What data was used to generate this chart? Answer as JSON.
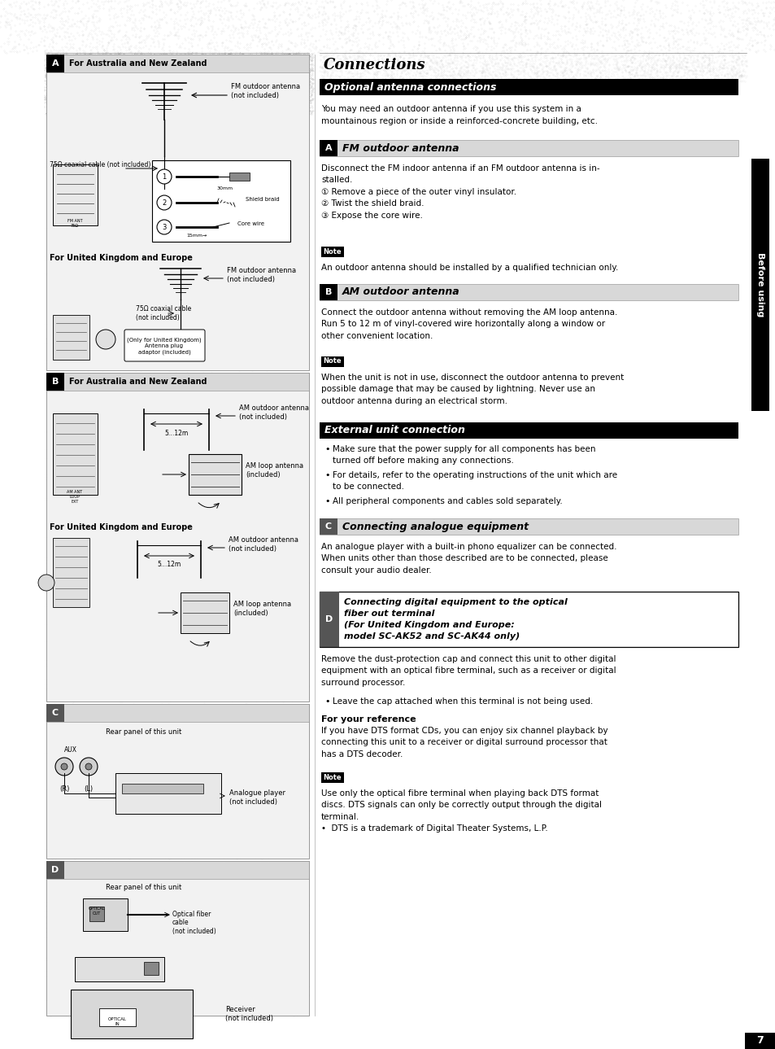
{
  "page_bg": "#ffffff",
  "title": "Connections",
  "section1_title": "Optional antenna connections",
  "body1": "You may need an outdoor antenna if you use this system in a\nmountainous region or inside a reinforced-concrete building, etc.",
  "section_A_label": "A",
  "section_A_title": "FM outdoor antenna",
  "section_A_body": "Disconnect the FM indoor antenna if an FM outdoor antenna is in-\nstalled.\n① Remove a piece of the outer vinyl insulator.\n② Twist the shield braid.\n③ Expose the core wire.",
  "note1_body": "An outdoor antenna should be installed by a qualified technician only.",
  "section_B_label": "B",
  "section_B_title": "AM outdoor antenna",
  "section_B_body": "Connect the outdoor antenna without removing the AM loop antenna.\nRun 5 to 12 m of vinyl-covered wire horizontally along a window or\nother convenient location.",
  "note2_body": "When the unit is not in use, disconnect the outdoor antenna to prevent\npossible damage that may be caused by lightning. Never use an\noutdoor antenna during an electrical storm.",
  "section2_title": "External unit connection",
  "bullet1": "Make sure that the power supply for all components has been\nturned off before making any connections.",
  "bullet2": "For details, refer to the operating instructions of the unit which are\nto be connected.",
  "bullet3": "All peripheral components and cables sold separately.",
  "section_C_label": "C",
  "section_C_title": "Connecting analogue equipment",
  "section_C_body": "An analogue player with a built-in phono equalizer can be connected.\nWhen units other than those described are to be connected, please\nconsult your audio dealer.",
  "section_D_label": "D",
  "section_D_title": "Connecting digital equipment to the optical\nfiber out terminal\n(For United Kingdom and Europe:\nmodel SC-AK52 and SC-AK44 only)",
  "section_D_body": "Remove the dust-protection cap and connect this unit to other digital\nequipment with an optical fibre terminal, such as a receiver or digital\nsurround processor.",
  "section_D_bullet": "Leave the cap attached when this terminal is not being used.",
  "ref_title": "For your reference",
  "ref_body": "If you have DTS format CDs, you can enjoy six channel playback by\nconnecting this unit to a receiver or digital surround processor that\nhas a DTS decoder.",
  "note3_body": "Use only the optical fibre terminal when playing back DTS format\ndiscs. DTS signals can only be correctly output through the digital\nterminal.\n•  DTS is a trademark of Digital Theater Systems, L.P.",
  "sidebar_text": "Before using",
  "page_num": "7",
  "left_A_header": "For Australia and New Zealand",
  "left_A_fm_label": "FM outdoor antenna\n(not included)",
  "left_A_cable": "75Ω coaxial cable (not included)",
  "left_A_30mm": "30mm",
  "left_A_shield": "Shield braid",
  "left_A_15mm": "15mm",
  "left_A_core": "Core wire",
  "left_A_uk_header": "For United Kingdom and Europe",
  "left_A_uk_fm": "FM outdoor antenna\n(not included)",
  "left_A_uk_cable": "75Ω coaxial cable\n(not included)",
  "left_A_uk_only": "(Only for United Kingdom)\nAntenna plug\nadaptor (included)",
  "left_B_header": "For Australia and New Zealand",
  "left_B_am_out": "AM outdoor antenna\n(not included)",
  "left_B_dist": "5…12m",
  "left_B_am_loop": "AM loop antenna\n(included)",
  "left_B_uk_header": "For United Kingdom and Europe",
  "left_B_uk_am_out": "AM outdoor antenna\n(not included)",
  "left_B_uk_dist": "5…12m",
  "left_B_uk_am_loop": "AM loop antenna\n(included)",
  "left_C_rear": "Rear panel of this unit",
  "left_C_aux": "AUX",
  "left_C_player": "Analogue player\n(not included)",
  "left_D_rear": "Rear panel of this unit",
  "left_D_cable": "Optical fiber\ncable\n(not included)",
  "left_D_receiver": "Receiver\n(not included)",
  "left_D_optical": "OPTICAL\nIN"
}
